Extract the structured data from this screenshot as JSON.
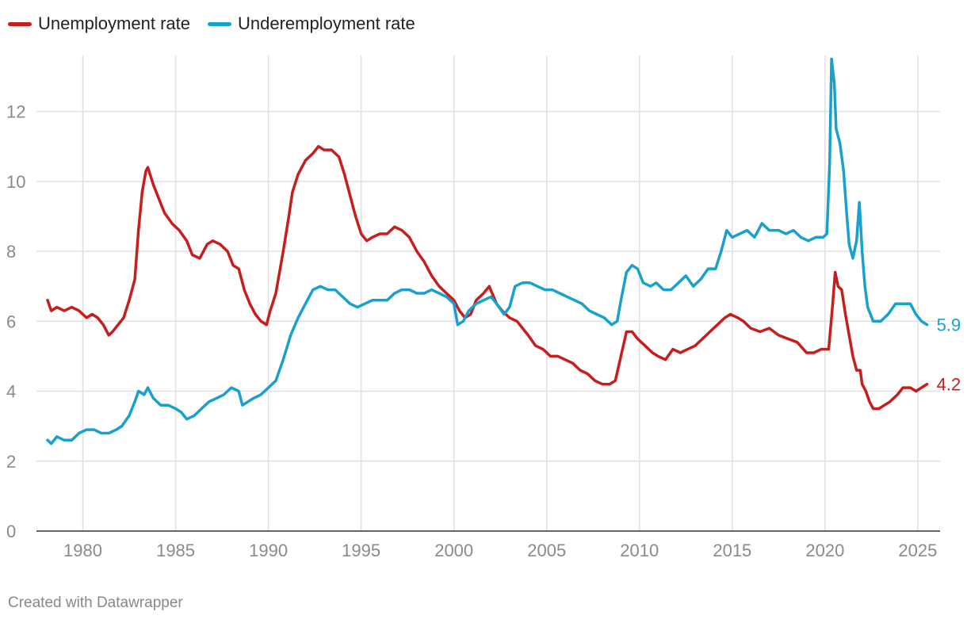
{
  "colors": {
    "unemployment": "#c71e1d",
    "underemployment": "#18a1cd",
    "grid": "#e0e0e0",
    "baseline": "#333333",
    "ticks": "#8a8a8a"
  },
  "credit": "Created with Datawrapper",
  "chart_data": {
    "type": "line",
    "title": "",
    "xlabel": "",
    "ylabel": "",
    "legend_placement": "top-left",
    "grid": true,
    "xlim": [
      1977.5,
      2026.2
    ],
    "ylim": [
      0,
      13.6
    ],
    "x_ticks": [
      1980,
      1985,
      1990,
      1995,
      2000,
      2005,
      2010,
      2015,
      2020,
      2025
    ],
    "y_ticks": [
      0,
      2,
      4,
      6,
      8,
      10,
      12
    ],
    "series": [
      {
        "name": "Unemployment rate",
        "color": "#c71e1d",
        "end_label": "4.2",
        "points": [
          [
            1978.1,
            6.6
          ],
          [
            1978.3,
            6.3
          ],
          [
            1978.6,
            6.4
          ],
          [
            1979.0,
            6.3
          ],
          [
            1979.4,
            6.4
          ],
          [
            1979.8,
            6.3
          ],
          [
            1980.2,
            6.1
          ],
          [
            1980.5,
            6.2
          ],
          [
            1980.8,
            6.1
          ],
          [
            1981.1,
            5.9
          ],
          [
            1981.4,
            5.6
          ],
          [
            1981.6,
            5.7
          ],
          [
            1981.9,
            5.9
          ],
          [
            1982.2,
            6.1
          ],
          [
            1982.5,
            6.6
          ],
          [
            1982.8,
            7.2
          ],
          [
            1983.0,
            8.6
          ],
          [
            1983.2,
            9.7
          ],
          [
            1983.4,
            10.3
          ],
          [
            1983.5,
            10.4
          ],
          [
            1983.8,
            9.9
          ],
          [
            1984.1,
            9.5
          ],
          [
            1984.4,
            9.1
          ],
          [
            1984.8,
            8.8
          ],
          [
            1985.2,
            8.6
          ],
          [
            1985.6,
            8.3
          ],
          [
            1985.9,
            7.9
          ],
          [
            1986.3,
            7.8
          ],
          [
            1986.7,
            8.2
          ],
          [
            1987.0,
            8.3
          ],
          [
            1987.4,
            8.2
          ],
          [
            1987.8,
            8.0
          ],
          [
            1988.1,
            7.6
          ],
          [
            1988.4,
            7.5
          ],
          [
            1988.7,
            6.9
          ],
          [
            1989.0,
            6.5
          ],
          [
            1989.3,
            6.2
          ],
          [
            1989.6,
            6.0
          ],
          [
            1989.9,
            5.9
          ],
          [
            1990.1,
            6.3
          ],
          [
            1990.4,
            6.8
          ],
          [
            1990.8,
            8.0
          ],
          [
            1991.1,
            9.0
          ],
          [
            1991.3,
            9.7
          ],
          [
            1991.6,
            10.2
          ],
          [
            1992.0,
            10.6
          ],
          [
            1992.4,
            10.8
          ],
          [
            1992.7,
            11.0
          ],
          [
            1993.0,
            10.9
          ],
          [
            1993.4,
            10.9
          ],
          [
            1993.8,
            10.7
          ],
          [
            1994.1,
            10.2
          ],
          [
            1994.4,
            9.6
          ],
          [
            1994.7,
            9.0
          ],
          [
            1995.0,
            8.5
          ],
          [
            1995.3,
            8.3
          ],
          [
            1995.6,
            8.4
          ],
          [
            1996.0,
            8.5
          ],
          [
            1996.4,
            8.5
          ],
          [
            1996.8,
            8.7
          ],
          [
            1997.2,
            8.6
          ],
          [
            1997.6,
            8.4
          ],
          [
            1998.0,
            8.0
          ],
          [
            1998.4,
            7.7
          ],
          [
            1998.8,
            7.3
          ],
          [
            1999.2,
            7.0
          ],
          [
            1999.6,
            6.8
          ],
          [
            2000.0,
            6.6
          ],
          [
            2000.3,
            6.3
          ],
          [
            2000.6,
            6.1
          ],
          [
            2000.9,
            6.2
          ],
          [
            2001.2,
            6.6
          ],
          [
            2001.6,
            6.8
          ],
          [
            2001.9,
            7.0
          ],
          [
            2002.3,
            6.5
          ],
          [
            2002.6,
            6.3
          ],
          [
            2003.0,
            6.1
          ],
          [
            2003.4,
            6.0
          ],
          [
            2003.7,
            5.8
          ],
          [
            2004.0,
            5.6
          ],
          [
            2004.4,
            5.3
          ],
          [
            2004.8,
            5.2
          ],
          [
            2005.2,
            5.0
          ],
          [
            2005.6,
            5.0
          ],
          [
            2006.0,
            4.9
          ],
          [
            2006.4,
            4.8
          ],
          [
            2006.8,
            4.6
          ],
          [
            2007.2,
            4.5
          ],
          [
            2007.6,
            4.3
          ],
          [
            2008.0,
            4.2
          ],
          [
            2008.4,
            4.2
          ],
          [
            2008.7,
            4.3
          ],
          [
            2009.0,
            5.0
          ],
          [
            2009.3,
            5.7
          ],
          [
            2009.6,
            5.7
          ],
          [
            2009.9,
            5.5
          ],
          [
            2010.3,
            5.3
          ],
          [
            2010.7,
            5.1
          ],
          [
            2011.0,
            5.0
          ],
          [
            2011.4,
            4.9
          ],
          [
            2011.8,
            5.2
          ],
          [
            2012.2,
            5.1
          ],
          [
            2012.6,
            5.2
          ],
          [
            2013.0,
            5.3
          ],
          [
            2013.4,
            5.5
          ],
          [
            2013.8,
            5.7
          ],
          [
            2014.2,
            5.9
          ],
          [
            2014.6,
            6.1
          ],
          [
            2014.9,
            6.2
          ],
          [
            2015.3,
            6.1
          ],
          [
            2015.6,
            6.0
          ],
          [
            2016.0,
            5.8
          ],
          [
            2016.5,
            5.7
          ],
          [
            2017.0,
            5.8
          ],
          [
            2017.5,
            5.6
          ],
          [
            2018.0,
            5.5
          ],
          [
            2018.5,
            5.4
          ],
          [
            2019.0,
            5.1
          ],
          [
            2019.4,
            5.1
          ],
          [
            2019.8,
            5.2
          ],
          [
            2020.2,
            5.2
          ],
          [
            2020.4,
            6.4
          ],
          [
            2020.55,
            7.4
          ],
          [
            2020.7,
            7.0
          ],
          [
            2020.9,
            6.9
          ],
          [
            2021.1,
            6.2
          ],
          [
            2021.3,
            5.6
          ],
          [
            2021.5,
            5.0
          ],
          [
            2021.7,
            4.6
          ],
          [
            2021.9,
            4.6
          ],
          [
            2022.0,
            4.2
          ],
          [
            2022.2,
            4.0
          ],
          [
            2022.4,
            3.7
          ],
          [
            2022.6,
            3.5
          ],
          [
            2022.9,
            3.5
          ],
          [
            2023.2,
            3.6
          ],
          [
            2023.5,
            3.7
          ],
          [
            2023.9,
            3.9
          ],
          [
            2024.2,
            4.1
          ],
          [
            2024.6,
            4.1
          ],
          [
            2024.9,
            4.0
          ],
          [
            2025.2,
            4.1
          ],
          [
            2025.5,
            4.2
          ]
        ]
      },
      {
        "name": "Underemployment rate",
        "color": "#18a1cd",
        "end_label": "5.9",
        "points": [
          [
            1978.1,
            2.6
          ],
          [
            1978.3,
            2.5
          ],
          [
            1978.6,
            2.7
          ],
          [
            1979.0,
            2.6
          ],
          [
            1979.4,
            2.6
          ],
          [
            1979.8,
            2.8
          ],
          [
            1980.2,
            2.9
          ],
          [
            1980.6,
            2.9
          ],
          [
            1981.0,
            2.8
          ],
          [
            1981.4,
            2.8
          ],
          [
            1981.8,
            2.9
          ],
          [
            1982.1,
            3.0
          ],
          [
            1982.5,
            3.3
          ],
          [
            1982.8,
            3.7
          ],
          [
            1983.0,
            4.0
          ],
          [
            1983.3,
            3.9
          ],
          [
            1983.5,
            4.1
          ],
          [
            1983.8,
            3.8
          ],
          [
            1984.2,
            3.6
          ],
          [
            1984.6,
            3.6
          ],
          [
            1985.0,
            3.5
          ],
          [
            1985.3,
            3.4
          ],
          [
            1985.6,
            3.2
          ],
          [
            1986.0,
            3.3
          ],
          [
            1986.4,
            3.5
          ],
          [
            1986.8,
            3.7
          ],
          [
            1987.2,
            3.8
          ],
          [
            1987.6,
            3.9
          ],
          [
            1988.0,
            4.1
          ],
          [
            1988.4,
            4.0
          ],
          [
            1988.6,
            3.6
          ],
          [
            1988.9,
            3.7
          ],
          [
            1989.2,
            3.8
          ],
          [
            1989.6,
            3.9
          ],
          [
            1990.0,
            4.1
          ],
          [
            1990.4,
            4.3
          ],
          [
            1990.8,
            4.9
          ],
          [
            1991.2,
            5.6
          ],
          [
            1991.6,
            6.1
          ],
          [
            1992.0,
            6.5
          ],
          [
            1992.4,
            6.9
          ],
          [
            1992.8,
            7.0
          ],
          [
            1993.2,
            6.9
          ],
          [
            1993.6,
            6.9
          ],
          [
            1994.0,
            6.7
          ],
          [
            1994.4,
            6.5
          ],
          [
            1994.8,
            6.4
          ],
          [
            1995.2,
            6.5
          ],
          [
            1995.6,
            6.6
          ],
          [
            1996.0,
            6.6
          ],
          [
            1996.4,
            6.6
          ],
          [
            1996.8,
            6.8
          ],
          [
            1997.2,
            6.9
          ],
          [
            1997.6,
            6.9
          ],
          [
            1998.0,
            6.8
          ],
          [
            1998.4,
            6.8
          ],
          [
            1998.8,
            6.9
          ],
          [
            1999.2,
            6.8
          ],
          [
            1999.6,
            6.7
          ],
          [
            2000.0,
            6.5
          ],
          [
            2000.2,
            5.9
          ],
          [
            2000.5,
            6.0
          ],
          [
            2000.8,
            6.3
          ],
          [
            2001.2,
            6.5
          ],
          [
            2001.6,
            6.6
          ],
          [
            2002.0,
            6.7
          ],
          [
            2002.3,
            6.5
          ],
          [
            2002.7,
            6.2
          ],
          [
            2003.0,
            6.4
          ],
          [
            2003.3,
            7.0
          ],
          [
            2003.7,
            7.1
          ],
          [
            2004.1,
            7.1
          ],
          [
            2004.5,
            7.0
          ],
          [
            2004.9,
            6.9
          ],
          [
            2005.3,
            6.9
          ],
          [
            2005.7,
            6.8
          ],
          [
            2006.1,
            6.7
          ],
          [
            2006.5,
            6.6
          ],
          [
            2006.9,
            6.5
          ],
          [
            2007.3,
            6.3
          ],
          [
            2007.7,
            6.2
          ],
          [
            2008.1,
            6.1
          ],
          [
            2008.5,
            5.9
          ],
          [
            2008.8,
            6.0
          ],
          [
            2009.0,
            6.6
          ],
          [
            2009.3,
            7.4
          ],
          [
            2009.6,
            7.6
          ],
          [
            2009.9,
            7.5
          ],
          [
            2010.2,
            7.1
          ],
          [
            2010.6,
            7.0
          ],
          [
            2010.9,
            7.1
          ],
          [
            2011.3,
            6.9
          ],
          [
            2011.7,
            6.9
          ],
          [
            2012.1,
            7.1
          ],
          [
            2012.5,
            7.3
          ],
          [
            2012.9,
            7.0
          ],
          [
            2013.3,
            7.2
          ],
          [
            2013.7,
            7.5
          ],
          [
            2014.1,
            7.5
          ],
          [
            2014.4,
            8.0
          ],
          [
            2014.7,
            8.6
          ],
          [
            2015.0,
            8.4
          ],
          [
            2015.4,
            8.5
          ],
          [
            2015.8,
            8.6
          ],
          [
            2016.2,
            8.4
          ],
          [
            2016.6,
            8.8
          ],
          [
            2017.0,
            8.6
          ],
          [
            2017.5,
            8.6
          ],
          [
            2017.9,
            8.5
          ],
          [
            2018.3,
            8.6
          ],
          [
            2018.7,
            8.4
          ],
          [
            2019.1,
            8.3
          ],
          [
            2019.5,
            8.4
          ],
          [
            2019.9,
            8.4
          ],
          [
            2020.1,
            8.5
          ],
          [
            2020.25,
            10.5
          ],
          [
            2020.35,
            13.5
          ],
          [
            2020.5,
            12.8
          ],
          [
            2020.6,
            11.5
          ],
          [
            2020.8,
            11.1
          ],
          [
            2021.0,
            10.3
          ],
          [
            2021.15,
            9.2
          ],
          [
            2021.3,
            8.2
          ],
          [
            2021.5,
            7.8
          ],
          [
            2021.7,
            8.3
          ],
          [
            2021.85,
            9.4
          ],
          [
            2022.0,
            8.0
          ],
          [
            2022.15,
            7.0
          ],
          [
            2022.3,
            6.4
          ],
          [
            2022.6,
            6.0
          ],
          [
            2023.0,
            6.0
          ],
          [
            2023.4,
            6.2
          ],
          [
            2023.8,
            6.5
          ],
          [
            2024.2,
            6.5
          ],
          [
            2024.6,
            6.5
          ],
          [
            2024.9,
            6.2
          ],
          [
            2025.2,
            6.0
          ],
          [
            2025.5,
            5.9
          ]
        ]
      }
    ]
  }
}
